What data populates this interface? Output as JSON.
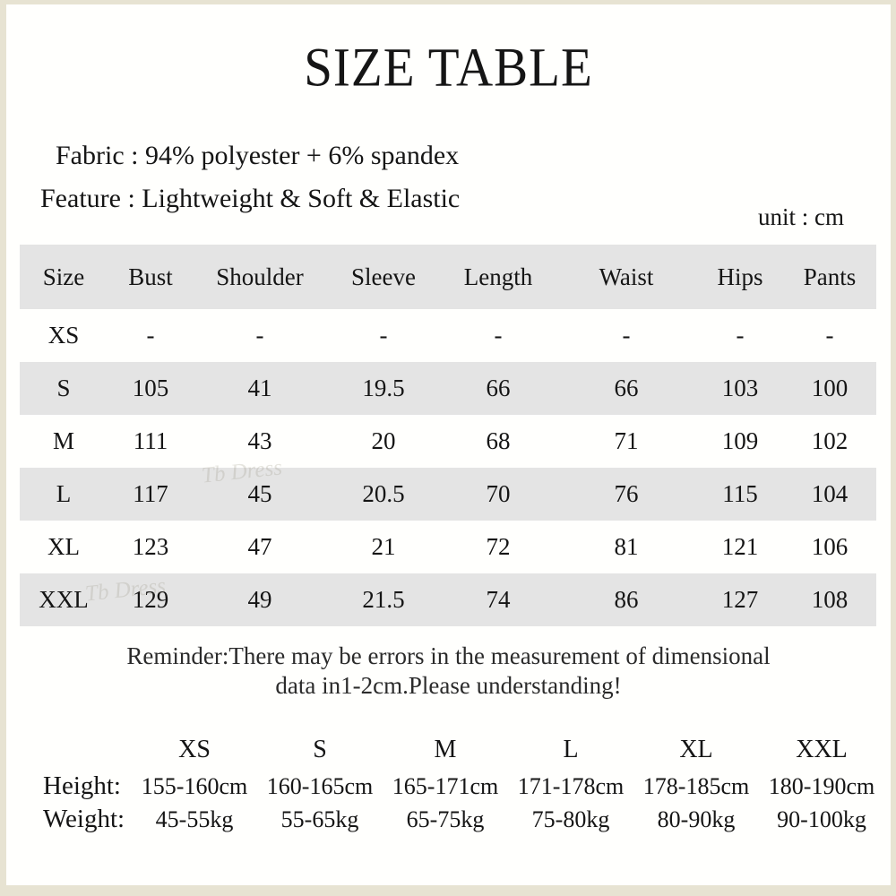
{
  "title": "SIZE TABLE",
  "info": {
    "fabric": "Fabric : 94% polyester + 6% spandex",
    "feature": "Feature : Lightweight & Soft & Elastic",
    "unit": "unit :  cm"
  },
  "size_table": {
    "columns": [
      "Size",
      "Bust",
      "Shoulder",
      "Sleeve",
      "Length",
      "Waist",
      "Hips",
      "Pants"
    ],
    "rows": [
      {
        "cells": [
          "XS",
          "-",
          "-",
          "-",
          "-",
          "-",
          "-",
          "-"
        ]
      },
      {
        "cells": [
          "S",
          "105",
          "41",
          "19.5",
          "66",
          "66",
          "103",
          "100"
        ]
      },
      {
        "cells": [
          "M",
          "111",
          "43",
          "20",
          "68",
          "71",
          "109",
          "102"
        ]
      },
      {
        "cells": [
          "L",
          "117",
          "45",
          "20.5",
          "70",
          "76",
          "115",
          "104"
        ]
      },
      {
        "cells": [
          "XL",
          "123",
          "47",
          "21",
          "72",
          "81",
          "121",
          "106"
        ]
      },
      {
        "cells": [
          "XXL",
          "129",
          "49",
          "21.5",
          "74",
          "86",
          "127",
          "108"
        ]
      }
    ]
  },
  "reminder": {
    "line1": "Reminder:There may be errors in the measurement of dimensional",
    "line2": "data in1-2cm.Please understanding!"
  },
  "fit_table": {
    "sizes": [
      "XS",
      "S",
      "M",
      "L",
      "XL",
      "XXL"
    ],
    "height_label": "Height:",
    "heights": [
      "155-160cm",
      "160-165cm",
      "165-171cm",
      "171-178cm",
      "178-185cm",
      "180-190cm"
    ],
    "weight_label": "Weight:",
    "weights": [
      "45-55kg",
      "55-65kg",
      "65-75kg",
      "75-80kg",
      "80-90kg",
      "90-100kg"
    ]
  },
  "watermark": "Tb Dress",
  "colors": {
    "frame": "#e7e3d2",
    "band": "#e4e4e4",
    "page": "#fffffd",
    "text": "#151515"
  }
}
